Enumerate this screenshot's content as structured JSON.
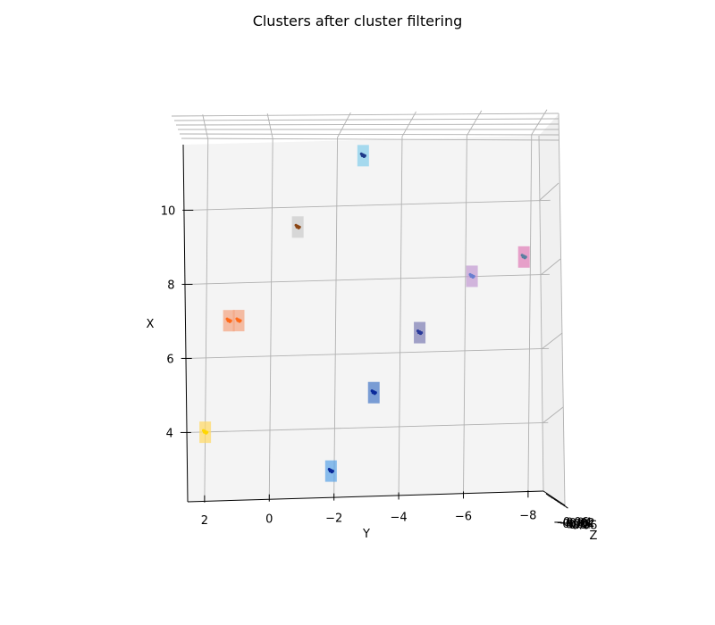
{
  "chart_data": {
    "type": "scatter",
    "title": "Clusters after cluster filtering",
    "xlabel": "Y",
    "ylabel": "X",
    "zlabel": "Z",
    "x_axis": {
      "ticks": [
        2,
        0,
        -2,
        -4,
        -6,
        -8
      ],
      "tick_labels": [
        "2",
        "0",
        "−2",
        "−4",
        "−6",
        "−8"
      ],
      "range": [
        2.6,
        -8.6
      ]
    },
    "y_axis": {
      "ticks": [
        4,
        6,
        8,
        10
      ],
      "tick_labels": [
        "4",
        "6",
        "8",
        "10"
      ],
      "range": [
        2.2,
        11.9
      ]
    },
    "z_axis": {
      "tick_labels": [
        "−0.06",
        "−0.04",
        "−0.02",
        "0.00",
        "0.02",
        "0.04",
        "0.06"
      ]
    },
    "grid": true,
    "clusters": [
      {
        "y": 2.0,
        "x": 4.0,
        "box_color": "#ffd966",
        "point_color": "#ffd700"
      },
      {
        "y": 1.3,
        "x": 7.0,
        "box_color": "#f4a582",
        "point_color": "#ff6a1a"
      },
      {
        "y": 1.0,
        "x": 7.0,
        "box_color": "#f4a582",
        "point_color": "#ff6a1a"
      },
      {
        "y": -0.8,
        "x": 9.5,
        "box_color": "#cccccc",
        "point_color": "#8b4513"
      },
      {
        "y": -2.8,
        "x": 11.4,
        "box_color": "#87ceeb",
        "point_color": "#1e3a8a"
      },
      {
        "y": -1.9,
        "x": 2.9,
        "box_color": "#5da5e8",
        "point_color": "#0a2a9a"
      },
      {
        "y": -3.2,
        "x": 5.0,
        "box_color": "#4a7ac8",
        "point_color": "#0a2a9a"
      },
      {
        "y": -4.6,
        "x": 6.6,
        "box_color": "#7f7fb5",
        "point_color": "#2a3a9a"
      },
      {
        "y": -6.2,
        "x": 8.1,
        "box_color": "#c39bd3",
        "point_color": "#6a7fd0"
      },
      {
        "y": -7.8,
        "x": 8.6,
        "box_color": "#e07fb8",
        "point_color": "#5a7fa0"
      }
    ]
  }
}
